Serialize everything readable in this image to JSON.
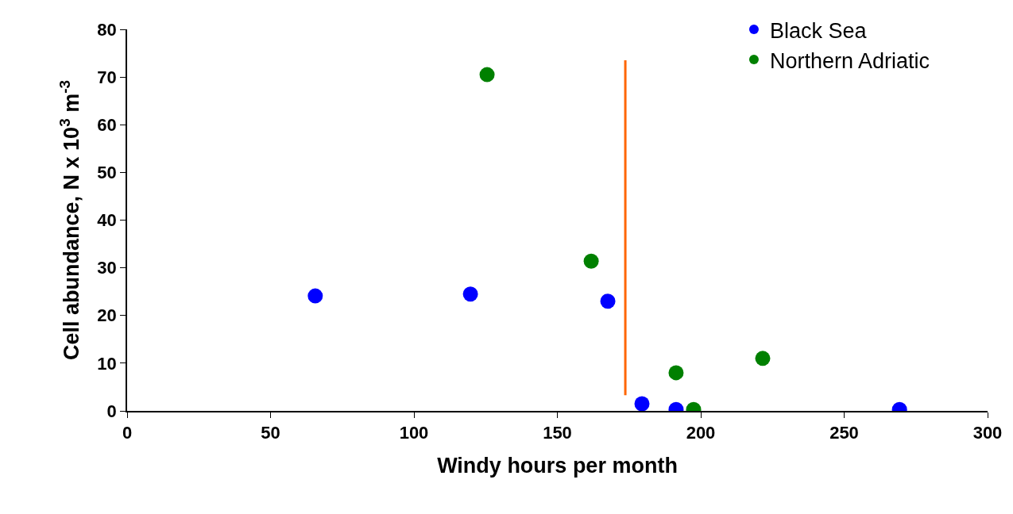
{
  "chart_data": {
    "type": "scatter",
    "xlabel": "Windy hours per month",
    "ylabel": "Cell abundance, N x 10$^{3}$ m$^{-3}$",
    "xlim": [
      0,
      300
    ],
    "xticks": [
      0,
      50,
      100,
      150,
      200,
      250,
      300
    ],
    "ylim": [
      0,
      80
    ],
    "yticks": [
      0,
      10,
      20,
      30,
      40,
      50,
      60,
      70,
      80
    ],
    "legend": "top right",
    "marker": "circle",
    "series": [
      {
        "name": "Black Sea",
        "color": "#0000ff",
        "x": [
          65.6,
          119.7,
          167.6,
          179.5,
          191.4,
          269.3
        ],
        "values": [
          24.1,
          24.5,
          23.0,
          1.5,
          0.3,
          0.3
        ]
      },
      {
        "name": "Northern Adriatic",
        "color": "#008000",
        "x": [
          125.5,
          161.8,
          191.4,
          197.5,
          221.6
        ],
        "values": [
          70.5,
          31.4,
          8.0,
          0.3,
          11.0
        ]
      },
      {
        "type": "line",
        "marker": "none",
        "color": "#ff6600",
        "x": [
          173.7,
          173.7
        ],
        "values": [
          3.3,
          73.5
        ]
      }
    ]
  }
}
